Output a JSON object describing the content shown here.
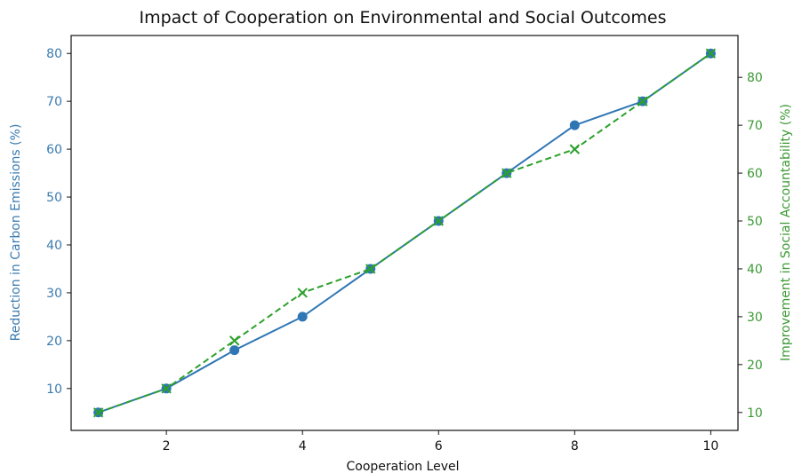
{
  "chart_data": {
    "type": "line",
    "title": "Impact of Cooperation on Environmental and Social Outcomes",
    "xlabel": "Cooperation Level",
    "ylabel_left": "Reduction in Carbon Emissions (%)",
    "ylabel_right": "Improvement in Social Accountability (%)",
    "x": [
      1,
      2,
      3,
      4,
      5,
      6,
      7,
      8,
      9,
      10
    ],
    "xlim": [
      0.6,
      10.4
    ],
    "ylim_left": [
      1.25,
      83.75
    ],
    "ylim_right": [
      6.25,
      88.75
    ],
    "x_ticks": [
      2,
      4,
      6,
      8,
      10
    ],
    "y_ticks_left": [
      10,
      20,
      30,
      40,
      50,
      60,
      70,
      80
    ],
    "y_ticks_right": [
      10,
      20,
      30,
      40,
      50,
      60,
      70,
      80
    ],
    "grid": false,
    "colors": {
      "left_axis": "#3a7bb0",
      "right_axis": "#3a9a33"
    },
    "series": [
      {
        "axis": "left",
        "color": "#2f76b4",
        "marker": "circle",
        "line_style": "solid",
        "values": [
          5,
          10,
          18,
          25,
          35,
          45,
          55,
          65,
          70,
          80
        ]
      },
      {
        "axis": "right",
        "color": "#2ca02c",
        "marker": "x",
        "line_style": "dashed",
        "values": [
          10,
          15,
          25,
          35,
          40,
          50,
          60,
          65,
          75,
          85
        ]
      }
    ]
  }
}
